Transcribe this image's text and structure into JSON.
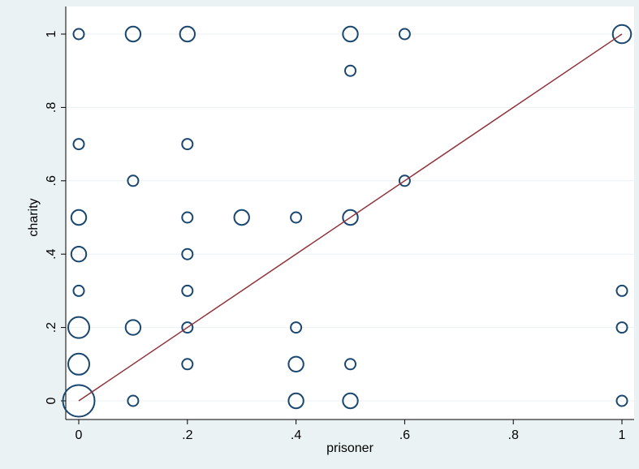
{
  "chart_data": {
    "type": "scatter",
    "marker": "weighted-hollow-circle",
    "xlabel": "prisoner",
    "ylabel": "charity",
    "xlim": [
      0,
      1
    ],
    "ylim": [
      0,
      1
    ],
    "x_ticks": [
      {
        "value": 0,
        "label": "0"
      },
      {
        "value": 0.2,
        "label": ".2"
      },
      {
        "value": 0.4,
        "label": ".4"
      },
      {
        "value": 0.6,
        "label": ".6"
      },
      {
        "value": 0.8,
        "label": ".8"
      },
      {
        "value": 1,
        "label": "1"
      }
    ],
    "y_ticks": [
      {
        "value": 0,
        "label": "0"
      },
      {
        "value": 0.2,
        "label": ".2"
      },
      {
        "value": 0.4,
        "label": ".4"
      },
      {
        "value": 0.6,
        "label": ".6"
      },
      {
        "value": 0.8,
        "label": ".8"
      },
      {
        "value": 1,
        "label": "1"
      }
    ],
    "grid": "horizontal",
    "points": [
      {
        "x": 0,
        "y": 1,
        "weight": 1
      },
      {
        "x": 0.1,
        "y": 1,
        "weight": 2
      },
      {
        "x": 0.2,
        "y": 1,
        "weight": 2
      },
      {
        "x": 0.5,
        "y": 1,
        "weight": 2
      },
      {
        "x": 0.6,
        "y": 1,
        "weight": 1
      },
      {
        "x": 1,
        "y": 1,
        "weight": 3
      },
      {
        "x": 0.5,
        "y": 0.9,
        "weight": 1
      },
      {
        "x": 0,
        "y": 0.7,
        "weight": 1
      },
      {
        "x": 0.2,
        "y": 0.7,
        "weight": 1
      },
      {
        "x": 0.1,
        "y": 0.6,
        "weight": 1
      },
      {
        "x": 0.6,
        "y": 0.6,
        "weight": 1
      },
      {
        "x": 0,
        "y": 0.5,
        "weight": 2
      },
      {
        "x": 0.2,
        "y": 0.5,
        "weight": 1
      },
      {
        "x": 0.3,
        "y": 0.5,
        "weight": 2
      },
      {
        "x": 0.4,
        "y": 0.5,
        "weight": 1
      },
      {
        "x": 0.5,
        "y": 0.5,
        "weight": 2
      },
      {
        "x": 0,
        "y": 0.4,
        "weight": 2
      },
      {
        "x": 0.2,
        "y": 0.4,
        "weight": 1
      },
      {
        "x": 0,
        "y": 0.3,
        "weight": 1
      },
      {
        "x": 0.2,
        "y": 0.3,
        "weight": 1
      },
      {
        "x": 1,
        "y": 0.3,
        "weight": 1
      },
      {
        "x": 0,
        "y": 0.2,
        "weight": 4
      },
      {
        "x": 0.1,
        "y": 0.2,
        "weight": 2
      },
      {
        "x": 0.2,
        "y": 0.2,
        "weight": 1
      },
      {
        "x": 0.4,
        "y": 0.2,
        "weight": 1
      },
      {
        "x": 1,
        "y": 0.2,
        "weight": 1
      },
      {
        "x": 0,
        "y": 0.1,
        "weight": 4
      },
      {
        "x": 0.2,
        "y": 0.1,
        "weight": 1
      },
      {
        "x": 0.4,
        "y": 0.1,
        "weight": 2
      },
      {
        "x": 0.5,
        "y": 0.1,
        "weight": 1
      },
      {
        "x": 0,
        "y": 0,
        "weight": 9
      },
      {
        "x": 0.1,
        "y": 0,
        "weight": 1
      },
      {
        "x": 0.4,
        "y": 0,
        "weight": 2
      },
      {
        "x": 0.5,
        "y": 0,
        "weight": 2
      },
      {
        "x": 1,
        "y": 0,
        "weight": 1
      }
    ],
    "reference_line": {
      "from": [
        0,
        0
      ],
      "to": [
        1,
        1
      ]
    },
    "colors": {
      "marker": "#1a476f",
      "line": "#90353b",
      "outer_background": "#eaf2f3",
      "plot_background": "#ffffff",
      "grid": "#eaf2f3"
    }
  }
}
